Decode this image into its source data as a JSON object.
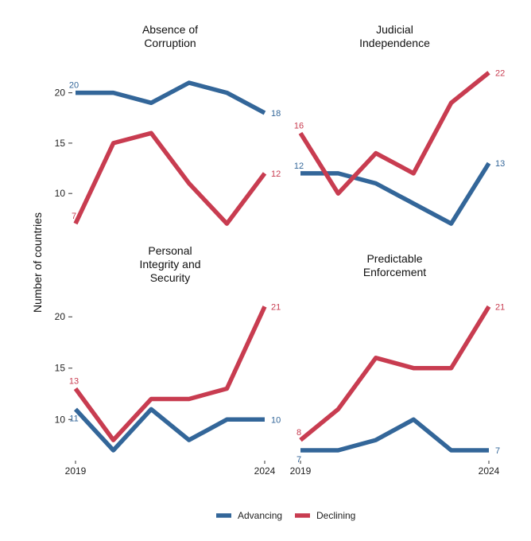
{
  "chart_data": {
    "type": "line",
    "ylabel": "Number of countries",
    "legend_position": "bottom",
    "grid": false,
    "x_range": [
      2019,
      2024
    ],
    "x_tick_labels": [
      "2019",
      "2024"
    ],
    "colors": {
      "Advancing": "#336699",
      "Declining": "#c83c50"
    },
    "legend": [
      {
        "name": "Advancing",
        "color": "#336699"
      },
      {
        "name": "Declining",
        "color": "#c83c50"
      }
    ],
    "panels": [
      {
        "title_lines": [
          "Absence of",
          "Corruption"
        ],
        "x": [
          2019,
          2020,
          2021,
          2022,
          2023,
          2024
        ],
        "yticks": [
          10,
          15,
          20
        ],
        "ylim": [
          6.3,
          22.5
        ],
        "series": [
          {
            "name": "Advancing",
            "values": [
              20,
              20,
              19,
              21,
              20,
              18
            ],
            "start_label": "20",
            "end_label": "18"
          },
          {
            "name": "Declining",
            "values": [
              7,
              15,
              16,
              11,
              7,
              12
            ],
            "start_label": "7",
            "end_label": "12"
          }
        ]
      },
      {
        "title_lines": [
          "Judicial",
          "Independence"
        ],
        "x": [
          2019,
          2020,
          2021,
          2022,
          2023,
          2024
        ],
        "yticks": [],
        "ylim": [
          6.3,
          22.5
        ],
        "series": [
          {
            "name": "Advancing",
            "values": [
              12,
              12,
              11,
              9,
              7,
              13
            ],
            "start_label": "12",
            "end_label": "13"
          },
          {
            "name": "Declining",
            "values": [
              16,
              10,
              14,
              12,
              19,
              22
            ],
            "start_label": "16",
            "end_label": "22"
          }
        ]
      },
      {
        "title_lines": [
          "Personal",
          "Integrity and",
          "Security"
        ],
        "x": [
          2019,
          2020,
          2021,
          2022,
          2023,
          2024
        ],
        "yticks": [
          10,
          15,
          20
        ],
        "ylim": [
          6.3,
          21.8
        ],
        "series": [
          {
            "name": "Advancing",
            "values": [
              11,
              7,
              11,
              8,
              10,
              10
            ],
            "start_label": "11",
            "end_label": "10"
          },
          {
            "name": "Declining",
            "values": [
              13,
              8,
              12,
              12,
              13,
              21
            ],
            "start_label": "13",
            "end_label": "21"
          }
        ]
      },
      {
        "title_lines": [
          "Predictable",
          "Enforcement"
        ],
        "x": [
          2019,
          2020,
          2021,
          2022,
          2023,
          2024
        ],
        "yticks": [],
        "ylim": [
          6.3,
          21.8
        ],
        "series": [
          {
            "name": "Advancing",
            "values": [
              7,
              7,
              8,
              10,
              7,
              7
            ],
            "start_label": "7",
            "end_label": "7"
          },
          {
            "name": "Declining",
            "values": [
              8,
              11,
              16,
              15,
              15,
              21
            ],
            "start_label": "8",
            "end_label": "21"
          }
        ]
      }
    ]
  }
}
